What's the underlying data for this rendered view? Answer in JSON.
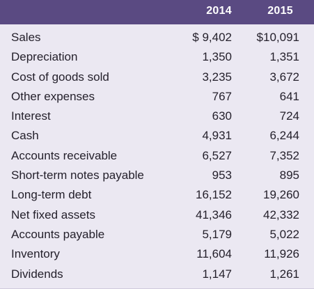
{
  "table": {
    "columns": [
      "2014",
      "2015"
    ],
    "rows": [
      {
        "label": "Sales",
        "y2014": "$ 9,402",
        "y2015": "$10,091"
      },
      {
        "label": "Depreciation",
        "y2014": "1,350",
        "y2015": "1,351"
      },
      {
        "label": "Cost of goods sold",
        "y2014": "3,235",
        "y2015": "3,672"
      },
      {
        "label": "Other expenses",
        "y2014": "767",
        "y2015": "641"
      },
      {
        "label": "Interest",
        "y2014": "630",
        "y2015": "724"
      },
      {
        "label": "Cash",
        "y2014": "4,931",
        "y2015": "6,244"
      },
      {
        "label": "Accounts receivable",
        "y2014": "6,527",
        "y2015": "7,352"
      },
      {
        "label": "Short-term notes payable",
        "y2014": "953",
        "y2015": "895"
      },
      {
        "label": "Long-term debt",
        "y2014": "16,152",
        "y2015": "19,260"
      },
      {
        "label": "Net fixed assets",
        "y2014": "41,346",
        "y2015": "42,332"
      },
      {
        "label": "Accounts payable",
        "y2014": "5,179",
        "y2015": "5,022"
      },
      {
        "label": "Inventory",
        "y2014": "11,604",
        "y2015": "11,926"
      },
      {
        "label": "Dividends",
        "y2014": "1,147",
        "y2015": "1,261"
      }
    ]
  },
  "colors": {
    "header_bg": "#5a4a82",
    "body_bg": "#ebe8f2",
    "text": "#231f2a"
  }
}
